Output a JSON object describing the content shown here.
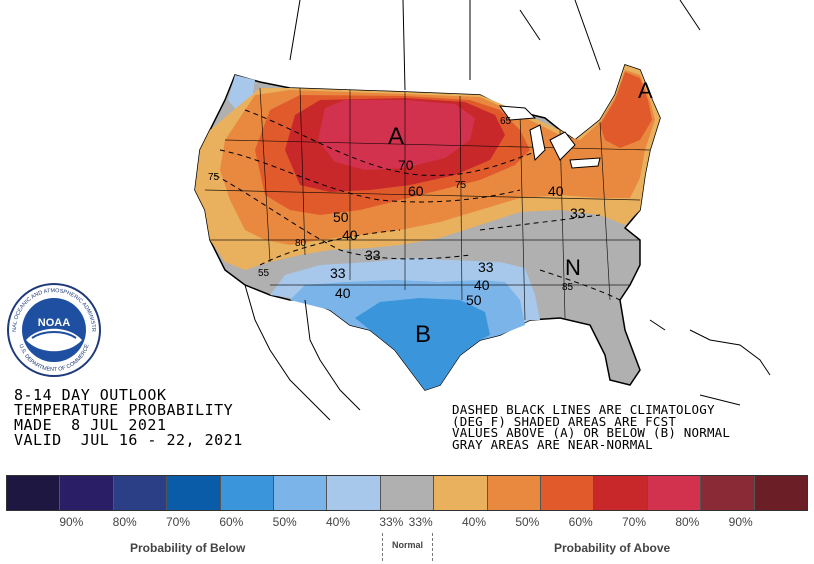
{
  "title": {
    "line1": "8-14 DAY OUTLOOK",
    "line2": "TEMPERATURE PROBABILITY",
    "line3": "MADE  8 JUL 2021",
    "line4": "VALID  JUL 16 - 22, 2021"
  },
  "notes": {
    "line1": "DASHED BLACK LINES ARE CLIMATOLOGY",
    "line2": "(DEG F) SHADED AREAS ARE FCST",
    "line3": "VALUES ABOVE (A) OR BELOW (B) NORMAL",
    "line4": "GRAY AREAS ARE NEAR-NORMAL"
  },
  "map": {
    "labels": [
      {
        "id": "center-above",
        "text": "A"
      },
      {
        "id": "center-above-ne",
        "text": "A"
      },
      {
        "id": "center-below",
        "text": "B"
      },
      {
        "id": "center-normal",
        "text": "N"
      },
      {
        "id": "p70",
        "text": "70"
      },
      {
        "id": "p60",
        "text": "60"
      },
      {
        "id": "p50",
        "text": "50"
      },
      {
        "id": "p40-w",
        "text": "40"
      },
      {
        "id": "p33-w",
        "text": "33"
      },
      {
        "id": "p33-c",
        "text": "33"
      },
      {
        "id": "p40-s",
        "text": "40"
      },
      {
        "id": "p33-s",
        "text": "33"
      },
      {
        "id": "p40-se",
        "text": "40"
      },
      {
        "id": "p50-se",
        "text": "50"
      },
      {
        "id": "p40-e",
        "text": "40"
      },
      {
        "id": "p33-e",
        "text": "33"
      },
      {
        "id": "c75-w",
        "text": "75"
      },
      {
        "id": "c75-c",
        "text": "75"
      },
      {
        "id": "c65",
        "text": "65"
      },
      {
        "id": "c80",
        "text": "80"
      },
      {
        "id": "c85",
        "text": "85"
      },
      {
        "id": "c55",
        "text": "55"
      }
    ]
  },
  "logo": {
    "text": "NOAA",
    "ring_top": "NATIONAL OCEANIC AND ATMOSPHERIC ADMINISTRATION",
    "ring_bottom": "U.S. DEPARTMENT OF COMMERCE"
  },
  "legend": {
    "colors": [
      "#1d1742",
      "#2a1f66",
      "#2b3f86",
      "#0b5ca8",
      "#3a95da",
      "#7ab4e8",
      "#a7c8eb",
      "#b0b0b0",
      "#e9b15e",
      "#e8893f",
      "#e05a2c",
      "#c9282b",
      "#d2324d",
      "#8a2a36",
      "#6b1e26"
    ],
    "percent_labels": [
      "90%",
      "80%",
      "70%",
      "60%",
      "50%",
      "40%",
      "33%",
      "33%",
      "40%",
      "50%",
      "60%",
      "70%",
      "80%",
      "90%"
    ],
    "below_label": "Probability of Below",
    "normal_label": "Normal",
    "above_label": "Probability of Above"
  }
}
